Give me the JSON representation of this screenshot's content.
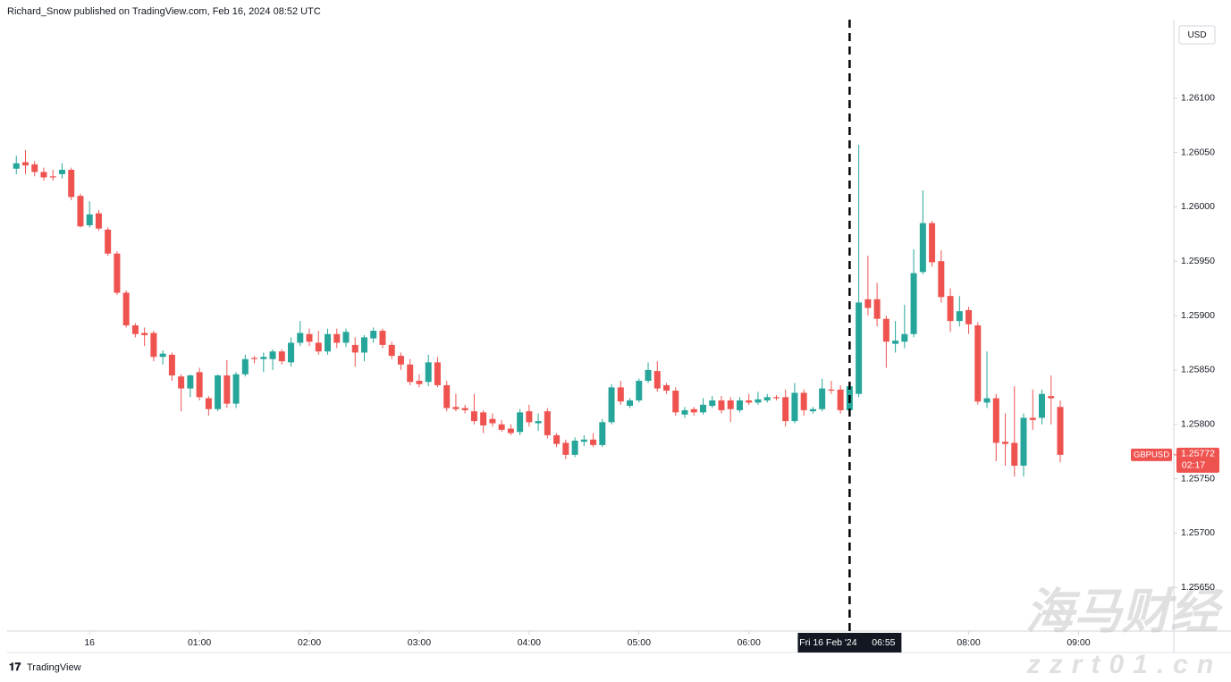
{
  "header": {
    "publisher": "Richard_Snow published on TradingView.com, Feb 16, 2024 08:52 UTC"
  },
  "branding": "TradingView",
  "watermark": [
    "海马财经",
    "zzrt01.cn"
  ],
  "chart_data": {
    "type": "candlestick",
    "currency": "USD",
    "up_color": "#26a69a",
    "down_color": "#ef5350",
    "grid": false,
    "xlim": [
      -45,
      592
    ],
    "xticks": [
      {
        "value": 0,
        "label": "16"
      },
      {
        "value": 60,
        "label": "01:00"
      },
      {
        "value": 120,
        "label": "02:00"
      },
      {
        "value": 180,
        "label": "03:00"
      },
      {
        "value": 240,
        "label": "04:00"
      },
      {
        "value": 300,
        "label": "05:00"
      },
      {
        "value": 360,
        "label": "06:00"
      },
      {
        "value": 480,
        "label": "08:00"
      },
      {
        "value": 540,
        "label": "09:00"
      }
    ],
    "ylim": [
      1.2561,
      1.26172
    ],
    "yticks": [
      {
        "value": 1.261,
        "label": "1.26100"
      },
      {
        "value": 1.2605,
        "label": "1.26050"
      },
      {
        "value": 1.26,
        "label": "1.26000"
      },
      {
        "value": 1.2595,
        "label": "1.25950"
      },
      {
        "value": 1.259,
        "label": "1.25900"
      },
      {
        "value": 1.2585,
        "label": "1.25850"
      },
      {
        "value": 1.258,
        "label": "1.25800"
      },
      {
        "value": 1.2575,
        "label": "1.25750"
      },
      {
        "value": 1.257,
        "label": "1.25700"
      },
      {
        "value": 1.2565,
        "label": "1.25650"
      }
    ],
    "crosshair": {
      "x": 415,
      "label": "Fri 16 Feb '24",
      "time": "06:55"
    },
    "last_price": {
      "symbol": "GBPUSD",
      "price": 1.25772,
      "countdown": "02:17"
    },
    "x": [
      -40,
      -35,
      -30,
      -25,
      -20,
      -15,
      -10,
      -5,
      0,
      5,
      10,
      15,
      20,
      25,
      30,
      35,
      40,
      45,
      50,
      55,
      60,
      65,
      70,
      75,
      80,
      85,
      90,
      95,
      100,
      105,
      110,
      115,
      120,
      125,
      130,
      135,
      140,
      145,
      150,
      155,
      160,
      165,
      170,
      175,
      180,
      185,
      190,
      195,
      200,
      205,
      210,
      215,
      220,
      225,
      230,
      235,
      240,
      245,
      250,
      255,
      260,
      265,
      270,
      275,
      280,
      285,
      290,
      295,
      300,
      305,
      310,
      315,
      320,
      325,
      330,
      335,
      340,
      345,
      350,
      355,
      360,
      365,
      370,
      375,
      380,
      385,
      390,
      395,
      400,
      405,
      410,
      415,
      420,
      425,
      430,
      435,
      440,
      445,
      450,
      455,
      460,
      465,
      470,
      475,
      480,
      485,
      490,
      495,
      500,
      505,
      510,
      515,
      520,
      525,
      530
    ],
    "open": [
      1.26035,
      1.26041,
      1.26039,
      1.26032,
      1.26028,
      1.2603,
      1.26034,
      1.2601,
      1.25983,
      1.25994,
      1.25979,
      1.25957,
      1.25921,
      1.25891,
      1.25884,
      1.25884,
      1.25862,
      1.25864,
      1.25844,
      1.25833,
      1.25848,
      1.25824,
      1.25814,
      1.25845,
      1.25819,
      1.25846,
      1.25861,
      1.2586,
      1.2586,
      1.25867,
      1.25857,
      1.25875,
      1.25883,
      1.25875,
      1.25867,
      1.25883,
      1.25875,
      1.25873,
      1.25866,
      1.25879,
      1.25886,
      1.25873,
      1.25863,
      1.25855,
      1.2584,
      1.25839,
      1.25857,
      1.25836,
      1.25816,
      1.25815,
      1.25812,
      1.25811,
      1.25805,
      1.258,
      1.25796,
      1.25793,
      1.25812,
      1.25801,
      1.25812,
      1.2579,
      1.25783,
      1.25772,
      1.25784,
      1.25786,
      1.25781,
      1.25802,
      1.25834,
      1.25817,
      1.25822,
      1.2584,
      1.25849,
      1.25836,
      1.25831,
      1.25809,
      1.25814,
      1.25811,
      1.25817,
      1.25822,
      1.25822,
      1.25813,
      1.25822,
      1.2582,
      1.25822,
      1.25825,
      1.25825,
      1.25803,
      1.25829,
      1.25812,
      1.25814,
      1.25832,
      1.25832,
      1.25813,
      1.25828,
      1.25915,
      1.25915,
      1.25897,
      1.25874,
      1.25876,
      1.25883,
      1.2594,
      1.25985,
      1.2595,
      1.25918,
      1.25895,
      1.25905,
      1.25891,
      1.2582,
      1.25824,
      1.25784,
      1.25783,
      1.25762,
      1.25806,
      1.25806,
      1.25826,
      1.25816
    ],
    "high": [
      1.26047,
      1.26052,
      1.26042,
      1.26036,
      1.26034,
      1.2604,
      1.26036,
      1.26012,
      1.26005,
      1.25997,
      1.25981,
      1.25959,
      1.25923,
      1.25893,
      1.25889,
      1.25886,
      1.25868,
      1.25866,
      1.25846,
      1.25846,
      1.25852,
      1.25826,
      1.25846,
      1.25859,
      1.25848,
      1.25864,
      1.25863,
      1.25866,
      1.25869,
      1.25869,
      1.2588,
      1.25895,
      1.25888,
      1.25886,
      1.25888,
      1.25888,
      1.25888,
      1.2588,
      1.25882,
      1.25889,
      1.25888,
      1.25876,
      1.25866,
      1.2586,
      1.25846,
      1.25864,
      1.25862,
      1.2584,
      1.25828,
      1.25818,
      1.25828,
      1.25813,
      1.2581,
      1.25804,
      1.258,
      1.25814,
      1.25818,
      1.2581,
      1.25815,
      1.25792,
      1.25786,
      1.25788,
      1.2579,
      1.25792,
      1.25805,
      1.25837,
      1.2584,
      1.25824,
      1.25842,
      1.25857,
      1.25858,
      1.25838,
      1.25834,
      1.25816,
      1.25816,
      1.25824,
      1.25826,
      1.25826,
      1.25825,
      1.25825,
      1.25828,
      1.2583,
      1.25828,
      1.25827,
      1.25832,
      1.25838,
      1.25832,
      1.25816,
      1.25842,
      1.2584,
      1.25836,
      1.25837,
      1.26057,
      1.25955,
      1.2593,
      1.259,
      1.25895,
      1.2591,
      1.25961,
      1.26015,
      1.25987,
      1.2596,
      1.25925,
      1.25918,
      1.25908,
      1.25894,
      1.25867,
      1.25828,
      1.2581,
      1.25835,
      1.2581,
      1.25832,
      1.25832,
      1.25845,
      1.25822
    ],
    "low": [
      1.2603,
      1.2603,
      1.26028,
      1.26024,
      1.26024,
      1.26026,
      1.26006,
      1.25981,
      1.25981,
      1.25978,
      1.25955,
      1.25919,
      1.25889,
      1.2588,
      1.25872,
      1.25858,
      1.25855,
      1.2584,
      1.25812,
      1.25825,
      1.25822,
      1.25808,
      1.25812,
      1.25815,
      1.25815,
      1.25844,
      1.25856,
      1.25848,
      1.2585,
      1.25855,
      1.25853,
      1.25872,
      1.25872,
      1.25864,
      1.25864,
      1.2587,
      1.25871,
      1.25853,
      1.25858,
      1.25875,
      1.2587,
      1.2586,
      1.2585,
      1.25836,
      1.25834,
      1.25835,
      1.25834,
      1.25812,
      1.25812,
      1.2581,
      1.258,
      1.25792,
      1.25798,
      1.25793,
      1.2579,
      1.2579,
      1.25798,
      1.25794,
      1.25787,
      1.25779,
      1.25768,
      1.2577,
      1.2578,
      1.25779,
      1.25779,
      1.258,
      1.25818,
      1.25815,
      1.2582,
      1.25838,
      1.2583,
      1.25828,
      1.25808,
      1.25806,
      1.25808,
      1.25809,
      1.25815,
      1.2581,
      1.25802,
      1.25811,
      1.25818,
      1.25818,
      1.2582,
      1.25822,
      1.25798,
      1.25801,
      1.25808,
      1.2581,
      1.25812,
      1.25828,
      1.2581,
      1.2581,
      1.25825,
      1.259,
      1.2589,
      1.25852,
      1.25866,
      1.2587,
      1.2588,
      1.25938,
      1.25945,
      1.25912,
      1.25885,
      1.2589,
      1.25883,
      1.25818,
      1.25815,
      1.25766,
      1.25762,
      1.25752,
      1.25752,
      1.25795,
      1.258,
      1.258,
      1.25765
    ],
    "close": [
      1.2604,
      1.26038,
      1.26032,
      1.26027,
      1.26027,
      1.26034,
      1.26009,
      1.25982,
      1.25993,
      1.2598,
      1.25957,
      1.25921,
      1.25891,
      1.25883,
      1.25882,
      1.25862,
      1.25865,
      1.25845,
      1.25833,
      1.25845,
      1.25825,
      1.25814,
      1.25845,
      1.25819,
      1.25846,
      1.2586,
      1.2586,
      1.25862,
      1.25867,
      1.25858,
      1.25875,
      1.25884,
      1.25876,
      1.25867,
      1.25883,
      1.25875,
      1.25885,
      1.25866,
      1.2588,
      1.25886,
      1.25873,
      1.25863,
      1.25855,
      1.25839,
      1.25837,
      1.25857,
      1.25836,
      1.25815,
      1.25814,
      1.25813,
      1.25803,
      1.25799,
      1.25801,
      1.25795,
      1.25792,
      1.25811,
      1.25802,
      1.25803,
      1.2579,
      1.25782,
      1.25772,
      1.25785,
      1.25786,
      1.25781,
      1.25802,
      1.25834,
      1.25821,
      1.25822,
      1.2584,
      1.2585,
      1.25833,
      1.25831,
      1.25811,
      1.25813,
      1.25811,
      1.25818,
      1.25822,
      1.25813,
      1.25814,
      1.25822,
      1.2582,
      1.25823,
      1.25825,
      1.25824,
      1.25803,
      1.25829,
      1.25813,
      1.25814,
      1.25833,
      1.25831,
      1.25813,
      1.25835,
      1.25912,
      1.25907,
      1.25897,
      1.25876,
      1.25877,
      1.25883,
      1.25939,
      1.25985,
      1.25949,
      1.25917,
      1.25895,
      1.25904,
      1.25892,
      1.25821,
      1.25824,
      1.25783,
      1.25782,
      1.25762,
      1.25806,
      1.25804,
      1.25828,
      1.25824,
      1.25772
    ]
  }
}
